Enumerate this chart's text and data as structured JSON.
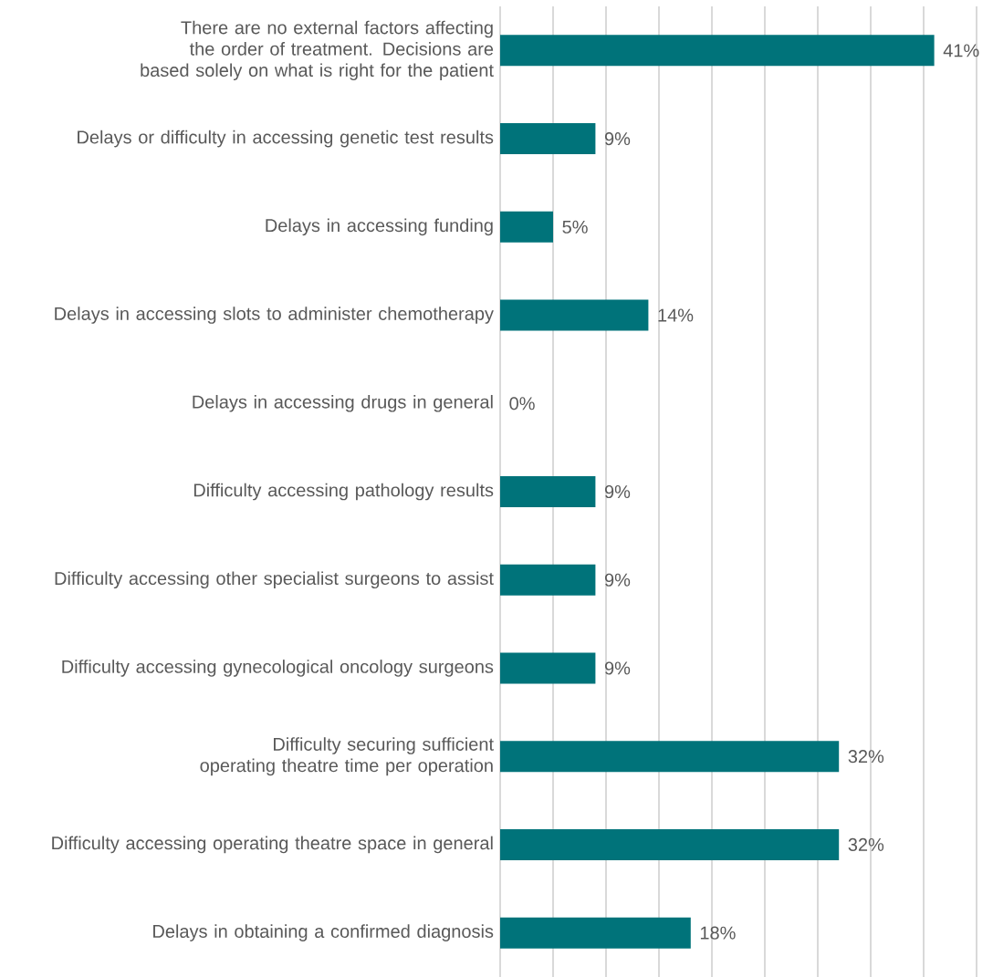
{
  "chart_data": {
    "type": "bar",
    "orientation": "horizontal",
    "categories": [
      "There are no external factors affecting the order of treatment. Decisions are based solely on what is right for the patient",
      "Delays or difficulty in accessing genetic test results",
      "Delays in accessing funding",
      "Delays in accessing slots to administer chemotherapy",
      "Delays in accessing drugs in general",
      "Difficulty accessing pathology results",
      "Difficulty accessing other specialist surgeons to assist",
      "Difficulty accessing gynecological oncology surgeons",
      "Difficulty securing sufficient operating theatre time per operation",
      "Difficulty accessing operating theatre space in general",
      "Delays in obtaining a confirmed diagnosis"
    ],
    "values": [
      41,
      9,
      5,
      14,
      0,
      9,
      9,
      9,
      32,
      32,
      18
    ],
    "value_labels": [
      "41%",
      "9%",
      "5%",
      "14%",
      "0%",
      "9%",
      "9%",
      "9%",
      "32%",
      "32%",
      "18%"
    ],
    "color": "#00737a",
    "xlim": [
      0,
      45
    ],
    "xticks": [
      {
        "value": 0,
        "label": null
      },
      {
        "value": 5,
        "label": null
      },
      {
        "value": 10,
        "label": null
      },
      {
        "value": 15,
        "label": null
      },
      {
        "value": 20,
        "label": null
      },
      {
        "value": 25,
        "label": null
      },
      {
        "value": 30,
        "label": null
      },
      {
        "value": 35,
        "label": null
      },
      {
        "value": 40,
        "label": null
      },
      {
        "value": 45,
        "label": null
      }
    ],
    "grid": "x",
    "tick_labels": "y"
  }
}
